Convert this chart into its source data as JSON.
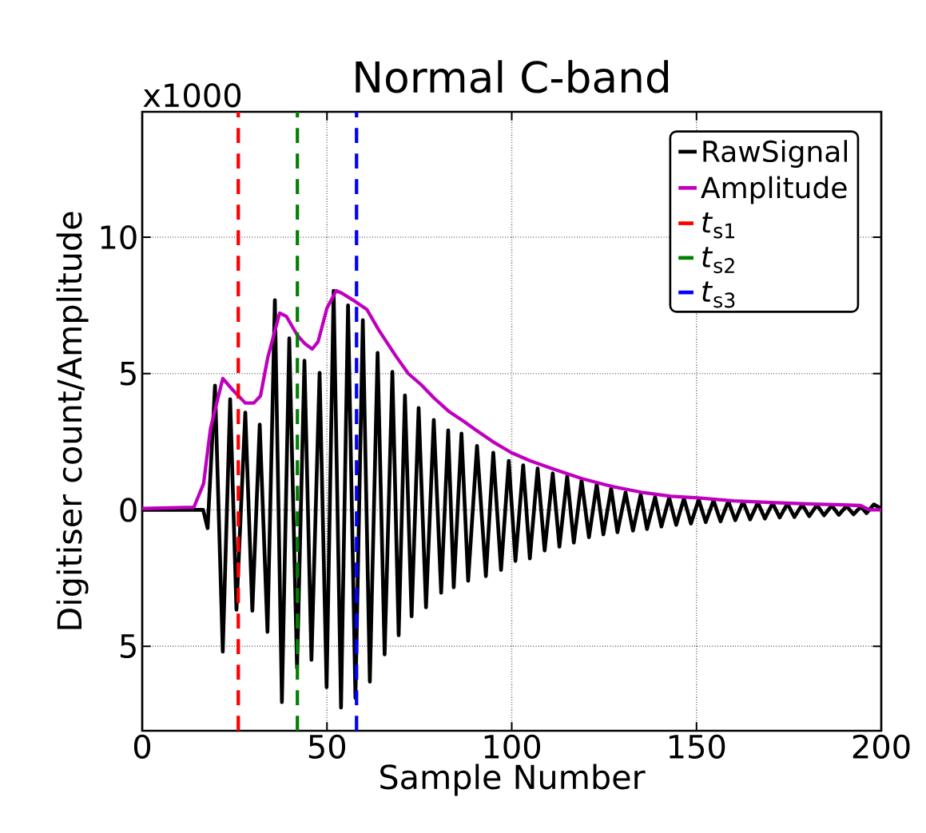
{
  "chart_data": {
    "type": "line",
    "title": "Normal C-band",
    "xlabel": "Sample Number",
    "ylabel": "Digitiser count/Amplitude",
    "annotations": [
      "x1000"
    ],
    "xlim": [
      0,
      200
    ],
    "ylim": [
      -8.1,
      14.6
    ],
    "xticks": [
      0,
      50,
      100,
      150,
      200
    ],
    "yticks": [
      {
        "value": -5,
        "label": "5"
      },
      0,
      5,
      10
    ],
    "grid": true,
    "legend": "top right",
    "series": [
      {
        "name": "RawSignal",
        "color": "#000000",
        "line_style": "solid",
        "x": [
          0,
          15.5,
          16.5,
          17.7,
          19.7,
          21.8,
          23.8,
          25.5,
          27.9,
          29.8,
          31.8,
          33.9,
          35.9,
          37.8,
          39.8,
          41.9,
          43.9,
          45.8,
          48,
          49.9,
          51.8,
          53.8,
          55.7,
          57.7,
          59.7,
          61.6,
          63.7,
          65.6,
          67.7,
          69.4,
          71.1,
          72.9,
          74.8,
          76.8,
          78.9,
          80.9,
          82.8,
          84.3,
          86.4,
          88.2,
          90.6,
          93,
          95,
          97.1,
          99.2,
          101,
          103.1,
          104.9,
          107,
          108.9,
          111.1,
          112.9,
          115,
          116.8,
          118.9,
          120.9,
          123,
          124.8,
          126.9,
          128.6,
          130.8,
          132.8,
          134.9,
          136.6,
          138.8,
          140.5,
          142.6,
          144.5,
          146.6,
          148.5,
          150.6,
          152.5,
          154.6,
          156.5,
          158.6,
          160.5,
          162.6,
          164.5,
          166.6,
          168.5,
          170.6,
          172.5,
          174.6,
          176.5,
          178.6,
          180.5,
          182.6,
          184.5,
          186.6,
          188.5,
          190.6,
          192.5,
          194.5,
          196,
          198,
          200
        ],
        "values": [
          0,
          0,
          0,
          -0.67,
          4.56,
          -5.2,
          4.06,
          -3.66,
          3.57,
          -3.7,
          3.13,
          -4.47,
          7.69,
          -7.05,
          6.29,
          -5.8,
          5.47,
          -5.5,
          5.03,
          -6.5,
          8.04,
          -7.25,
          7.5,
          -6.9,
          6.96,
          -6.3,
          5.76,
          -5.3,
          5.06,
          -4.6,
          4.2,
          -3.9,
          3.74,
          -3.57,
          3.3,
          -3.04,
          2.92,
          -2.84,
          2.8,
          -2.6,
          2.35,
          -2.43,
          2.1,
          -2.2,
          1.8,
          -1.87,
          1.64,
          -1.78,
          1.52,
          -1.49,
          1.34,
          -1.35,
          1.23,
          -1.2,
          1.08,
          -1.0,
          0.94,
          -0.9,
          0.79,
          -0.82,
          0.64,
          -0.76,
          0.56,
          -0.7,
          0.47,
          -0.61,
          0.45,
          -0.55,
          0.42,
          -0.5,
          0.38,
          -0.45,
          0.35,
          -0.42,
          0.32,
          -0.38,
          0.3,
          -0.35,
          0.27,
          -0.32,
          0.25,
          -0.28,
          0.23,
          -0.26,
          0.2,
          -0.23,
          0.18,
          -0.2,
          0.16,
          -0.18,
          0.14,
          -0.16,
          0.12,
          -0.12,
          0.2,
          0.05
        ]
      },
      {
        "name": "Amplitude",
        "color": "#bf00bf",
        "line_style": "solid",
        "x": [
          0,
          14,
          16.6,
          18.5,
          21.8,
          24.5,
          27.9,
          30.2,
          32,
          34,
          37.2,
          39,
          42,
          44,
          46,
          47.6,
          50,
          52.5,
          54,
          57,
          60.8,
          64,
          68.5,
          72,
          75.5,
          79,
          83.1,
          87,
          90.4,
          94.9,
          99.9,
          105,
          111.4,
          119,
          127.4,
          135,
          143.1,
          150.3,
          160,
          169.8,
          180,
          188,
          194.4,
          196.8,
          200
        ],
        "values": [
          0.05,
          0.1,
          0.96,
          3,
          4.82,
          4.4,
          3.92,
          3.92,
          4.18,
          5.6,
          7.22,
          7.1,
          6.4,
          6.1,
          5.9,
          6.17,
          7.4,
          8.04,
          7.95,
          7.7,
          7.35,
          6.6,
          5.67,
          5.0,
          4.59,
          4.1,
          3.6,
          3.25,
          2.92,
          2.5,
          2.1,
          1.8,
          1.49,
          1.15,
          0.85,
          0.65,
          0.5,
          0.44,
          0.33,
          0.27,
          0.22,
          0.19,
          0.16,
          0.0,
          0.0
        ]
      },
      {
        "name": "*t*$_{s1}$",
        "color": "#ff0000",
        "line_style": "dashed",
        "x": [
          26,
          26
        ],
        "values": [
          -8.1,
          14.6
        ]
      },
      {
        "name": "*t*$_{s2}$",
        "color": "#008000",
        "line_style": "dashed",
        "x": [
          42,
          42
        ],
        "values": [
          -8.1,
          14.6
        ]
      },
      {
        "name": "*t*$_{s3}$",
        "color": "#0000ff",
        "line_style": "dashed",
        "x": [
          58,
          58
        ],
        "values": [
          -8.1,
          14.6
        ]
      }
    ]
  }
}
